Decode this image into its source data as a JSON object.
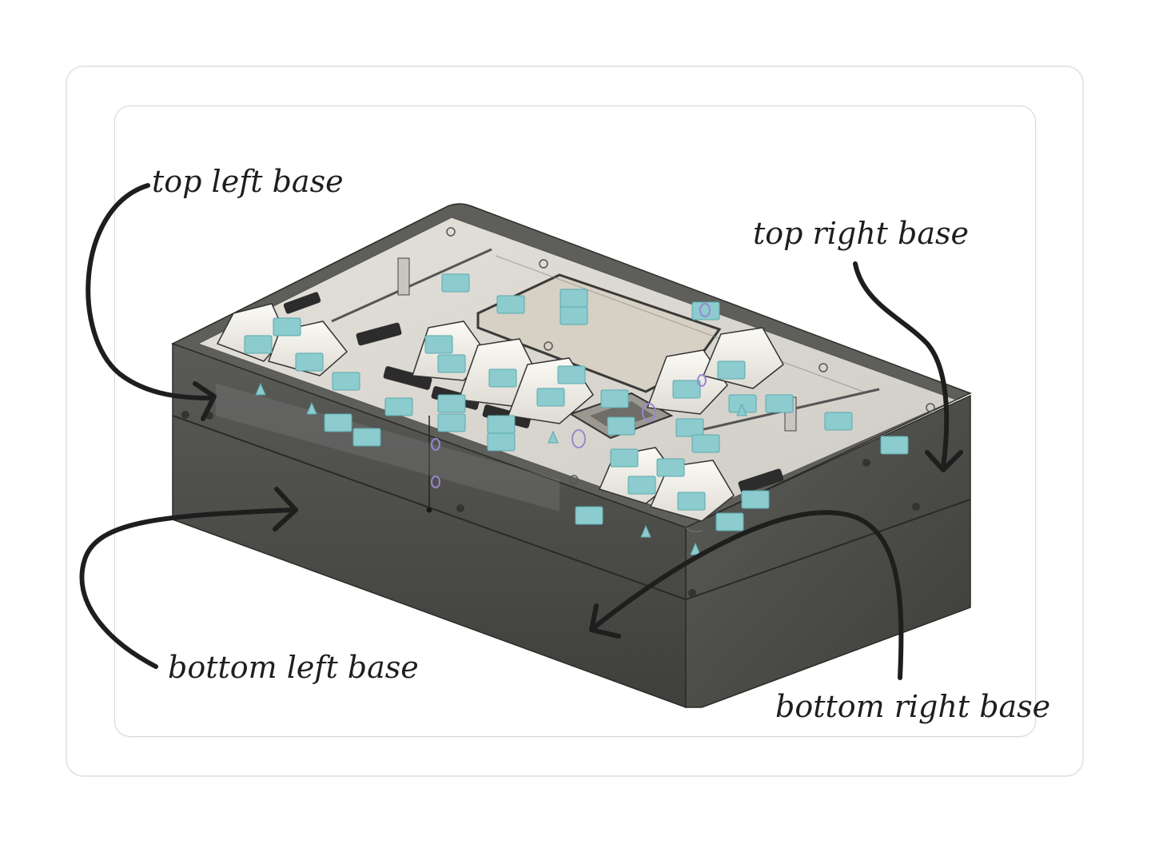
{
  "annotations": {
    "top_left": "top left base",
    "top_right": "top right base",
    "bottom_left": "bottom left base",
    "bottom_right": "bottom right base"
  },
  "colors": {
    "case_front": "#555552",
    "case_side": "#4a4a47",
    "case_top_edge": "#6a6a66",
    "plate": "#e9e6e0",
    "keycap": "#f4f2ec",
    "screen": "#d9d4c8",
    "marker": "#7fc3c6",
    "ink": "#1e1e1e"
  }
}
